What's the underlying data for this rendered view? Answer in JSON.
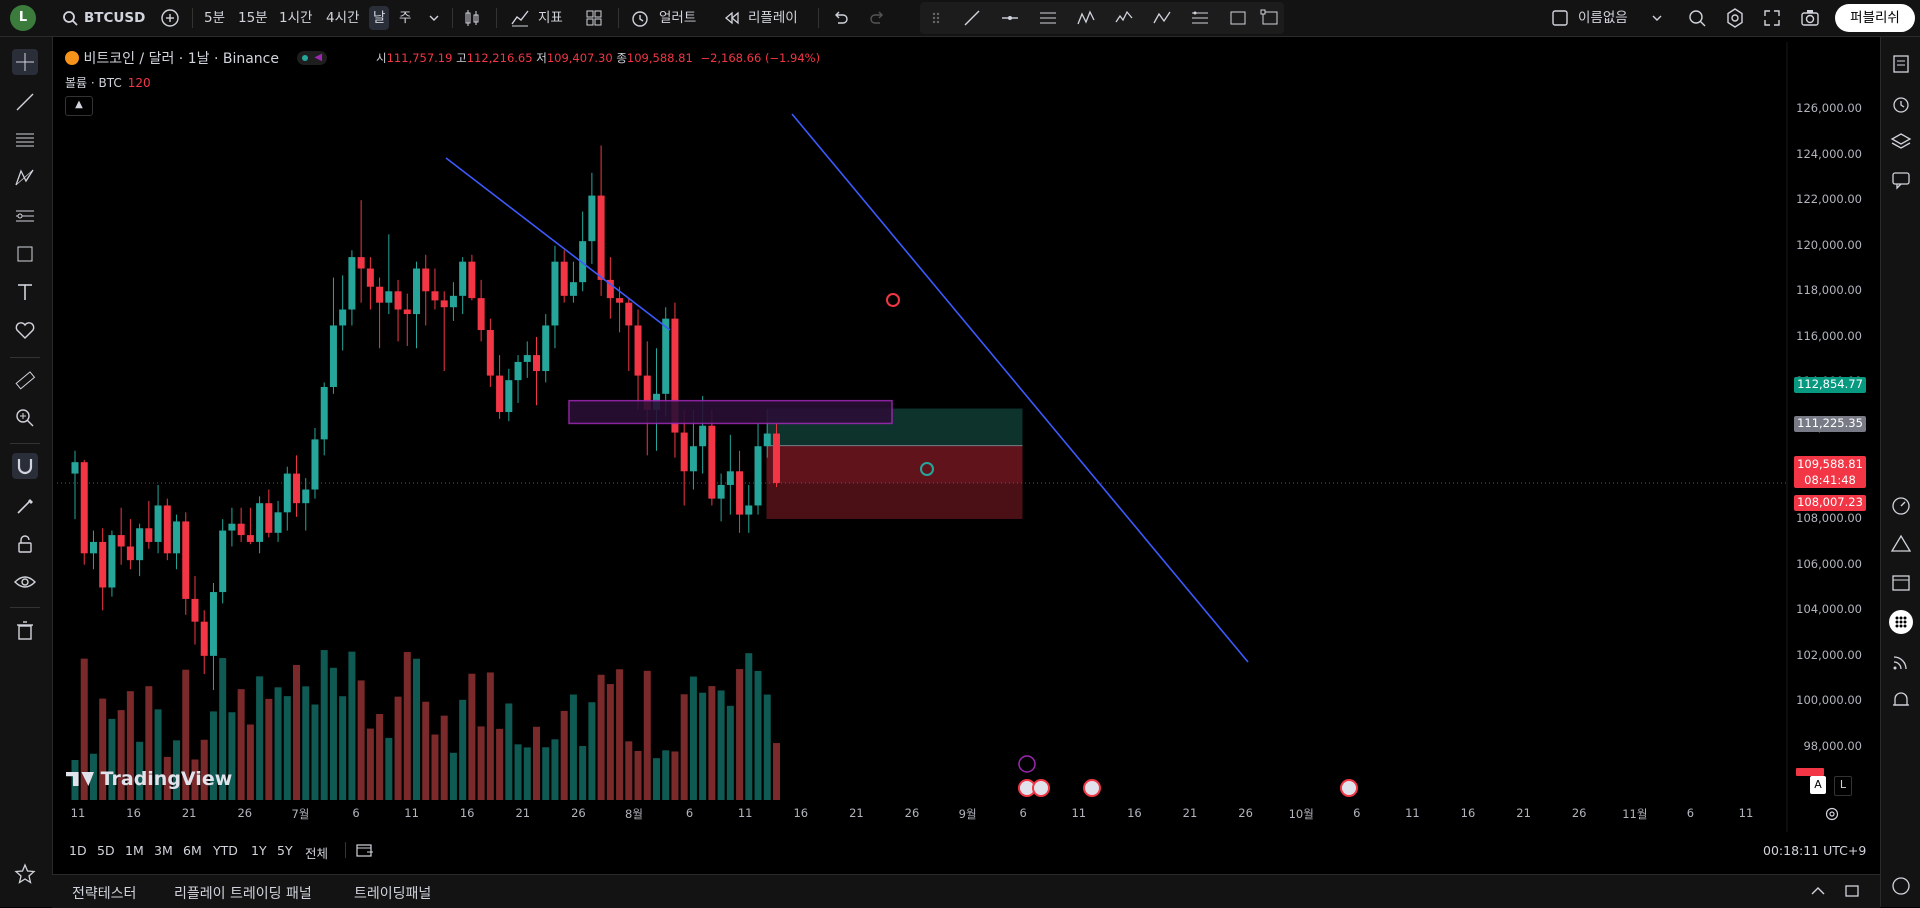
{
  "header": {
    "avatar_letter": "L",
    "symbol": "BTCUSD",
    "intervals": [
      "5분",
      "15분",
      "1시간",
      "4시간",
      "날",
      "주"
    ],
    "active_interval": "날",
    "indicators_label": "지표",
    "alert_label": "얼러트",
    "replay_label": "리플레이",
    "layout_name": "이름없음",
    "publish_label": "퍼블리쉬"
  },
  "legend": {
    "title": "비트코인 / 달러 · 1날 · Binance",
    "open_label": "시",
    "open": "111,757.19",
    "high_label": "고",
    "high": "112,216.65",
    "low_label": "저",
    "low": "109,407.30",
    "close_label": "종",
    "close": "109,588.81",
    "change": "−2,168.66 (−1.94%)",
    "volume_label": "볼륨 · BTC",
    "volume_value": "120"
  },
  "price_axis": {
    "ticks": [
      "126,000.00",
      "124,000.00",
      "122,000.00",
      "120,000.00",
      "118,000.00",
      "116,000.00",
      "114,000.00",
      "112,000.00",
      "110,000.00",
      "108,000.00",
      "106,000.00",
      "104,000.00",
      "102,000.00",
      "100,000.00",
      "98,000.00"
    ],
    "badge_target": "112,854.77",
    "badge_entry": "111,225.35",
    "badge_last": "109,588.81",
    "badge_countdown": "08:41:48",
    "badge_stop": "108,007.23"
  },
  "time_axis": {
    "labels": [
      "11",
      "16",
      "21",
      "26",
      "7월",
      "6",
      "11",
      "16",
      "21",
      "26",
      "8월",
      "6",
      "11",
      "16",
      "21",
      "26",
      "9월",
      "6",
      "11",
      "16",
      "21",
      "26",
      "10월",
      "6",
      "11",
      "16",
      "21",
      "26",
      "11월",
      "6",
      "11"
    ]
  },
  "range_bar": {
    "ranges": [
      "1D",
      "5D",
      "1M",
      "3M",
      "6M",
      "YTD",
      "1Y",
      "5Y",
      "전체"
    ],
    "clock": "00:18:11 UTC+9",
    "auto_label": "A",
    "log_label": "L"
  },
  "bottom_tabs": [
    "전략테스터",
    "리플레이 트레이딩 패널",
    "트레이딩패널"
  ],
  "watermark": "TradingView",
  "colors": {
    "up": "#26a69a",
    "down": "#f23645",
    "trendline": "#3d5afe",
    "zone": "#9c27b0",
    "target_zone": "#0d332c",
    "stop_zone": "#4a1016"
  },
  "chart_data": {
    "type": "candlestick",
    "symbol": "BTCUSD",
    "interval": "1D",
    "ylim": [
      97000,
      126500
    ],
    "candles": [
      [
        110000,
        111000,
        108000,
        110500
      ],
      [
        110500,
        110600,
        106000,
        106500
      ],
      [
        106500,
        107500,
        105800,
        107000
      ],
      [
        107000,
        107600,
        104000,
        105000
      ],
      [
        105000,
        107500,
        104600,
        107300
      ],
      [
        107300,
        108500,
        106000,
        106800
      ],
      [
        106800,
        108000,
        105800,
        106200
      ],
      [
        106200,
        107800,
        105500,
        107600
      ],
      [
        107600,
        108800,
        106700,
        107000
      ],
      [
        107000,
        109500,
        106500,
        108600
      ],
      [
        108600,
        108900,
        106200,
        106500
      ],
      [
        106500,
        108200,
        105800,
        107900
      ],
      [
        107900,
        108300,
        103800,
        104500
      ],
      [
        104500,
        105500,
        102500,
        103500
      ],
      [
        103500,
        104000,
        101200,
        102000
      ],
      [
        102000,
        105200,
        100500,
        104800
      ],
      [
        104800,
        108000,
        104300,
        107500
      ],
      [
        107500,
        108500,
        106800,
        107800
      ],
      [
        107800,
        108500,
        107000,
        107300
      ],
      [
        107300,
        108500,
        106900,
        107000
      ],
      [
        107000,
        109000,
        106500,
        108700
      ],
      [
        108700,
        109300,
        107200,
        107400
      ],
      [
        107400,
        108800,
        107000,
        108300
      ],
      [
        108300,
        110300,
        107500,
        110000
      ],
      [
        110000,
        110800,
        108100,
        108700
      ],
      [
        108700,
        109800,
        107500,
        109300
      ],
      [
        109300,
        112000,
        108900,
        111500
      ],
      [
        111500,
        114000,
        110800,
        113800
      ],
      [
        113800,
        118600,
        113500,
        116500
      ],
      [
        116500,
        118700,
        115400,
        117200
      ],
      [
        117200,
        119800,
        116500,
        119500
      ],
      [
        119500,
        122000,
        117500,
        119000
      ],
      [
        119000,
        119500,
        117200,
        118200
      ],
      [
        118200,
        118600,
        115500,
        117500
      ],
      [
        117500,
        120500,
        117000,
        118000
      ],
      [
        118000,
        118500,
        115800,
        117200
      ],
      [
        117200,
        117900,
        115600,
        117000
      ],
      [
        117000,
        119300,
        115500,
        119000
      ],
      [
        119000,
        119600,
        116500,
        118000
      ],
      [
        118000,
        119000,
        117200,
        117600
      ],
      [
        117600,
        118000,
        114500,
        117300
      ],
      [
        117300,
        118400,
        116700,
        117800
      ],
      [
        117800,
        119500,
        117000,
        119300
      ],
      [
        119300,
        119600,
        117600,
        117700
      ],
      [
        117700,
        118500,
        115800,
        116300
      ],
      [
        116300,
        116800,
        113800,
        114300
      ],
      [
        114300,
        115200,
        112400,
        112700
      ],
      [
        112700,
        114600,
        112300,
        114100
      ],
      [
        114100,
        115200,
        113100,
        114900
      ],
      [
        114900,
        115800,
        114200,
        115200
      ],
      [
        115200,
        116000,
        113000,
        114500
      ],
      [
        114500,
        117000,
        114000,
        116500
      ],
      [
        116500,
        120000,
        115500,
        119300
      ],
      [
        119300,
        119800,
        117500,
        117800
      ],
      [
        117800,
        119300,
        117500,
        118400
      ],
      [
        118400,
        121500,
        118000,
        120200
      ],
      [
        120200,
        123200,
        119200,
        122200
      ],
      [
        122200,
        124400,
        117800,
        118500
      ],
      [
        118500,
        119500,
        116800,
        117700
      ],
      [
        117700,
        118200,
        116200,
        117500
      ],
      [
        117500,
        117700,
        114500,
        116500
      ],
      [
        116500,
        117200,
        112800,
        114300
      ],
      [
        114300,
        115800,
        110800,
        112800
      ],
      [
        112800,
        115500,
        111000,
        113500
      ],
      [
        113500,
        117300,
        112500,
        116800
      ],
      [
        116800,
        117500,
        110700,
        111800
      ],
      [
        111800,
        112800,
        108600,
        110100
      ],
      [
        110100,
        112800,
        109300,
        111200
      ],
      [
        111200,
        113400,
        110000,
        112100
      ],
      [
        112100,
        112800,
        108600,
        108900
      ],
      [
        108900,
        110000,
        107900,
        109500
      ],
      [
        109500,
        111700,
        108200,
        110100
      ],
      [
        110100,
        111000,
        107400,
        108200
      ],
      [
        108200,
        109500,
        107400,
        108600
      ],
      [
        108600,
        112200,
        108200,
        111200
      ],
      [
        111200,
        112800,
        110700,
        111757
      ],
      [
        111757,
        112216,
        109407,
        109588
      ]
    ],
    "annotations": [
      {
        "kind": "trendline",
        "from": [
          "2025-07-14",
          122000
        ],
        "to": [
          "2025-07-29",
          114800
        ]
      },
      {
        "kind": "trendline",
        "from": [
          "2025-08-14",
          123800
        ],
        "to": [
          "2025-09-23",
          101500
        ]
      },
      {
        "kind": "zone",
        "top": 113200,
        "bottom": 112200
      },
      {
        "kind": "long_position",
        "target": 112854.77,
        "entry": 111225.35,
        "stop": 108007.23
      }
    ]
  }
}
